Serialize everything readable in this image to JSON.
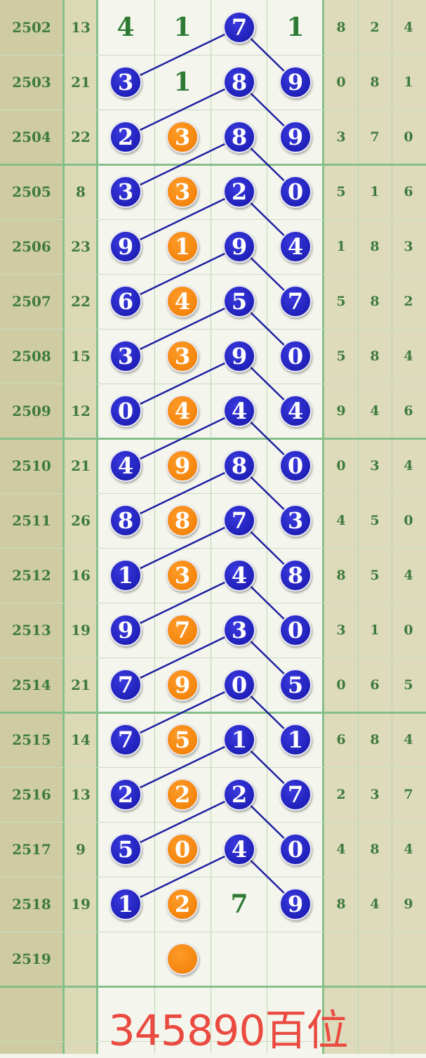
{
  "colors": {
    "blue_ball": "#1a1ab8",
    "orange_ball": "#f0820a",
    "line": "#1f1fa0",
    "text_green": "#3f7a3d",
    "caption": "#ea4a40"
  },
  "rows": [
    {
      "period": "2502",
      "sum": "13",
      "cells": [
        [
          "4",
          "plain"
        ],
        [
          "1",
          "plain"
        ],
        [
          "7",
          "blue"
        ],
        [
          "1",
          "plain"
        ]
      ],
      "tail": [
        "8",
        "2",
        "4"
      ]
    },
    {
      "period": "2503",
      "sum": "21",
      "cells": [
        [
          "3",
          "blue"
        ],
        [
          "1",
          "plain"
        ],
        [
          "8",
          "blue"
        ],
        [
          "9",
          "blue"
        ]
      ],
      "tail": [
        "0",
        "8",
        "1"
      ]
    },
    {
      "period": "2504",
      "sum": "22",
      "cells": [
        [
          "2",
          "blue"
        ],
        [
          "3",
          "orange"
        ],
        [
          "8",
          "blue"
        ],
        [
          "9",
          "blue"
        ]
      ],
      "tail": [
        "3",
        "7",
        "0"
      ]
    },
    {
      "period": "2505",
      "sum": "8",
      "cells": [
        [
          "3",
          "blue"
        ],
        [
          "3",
          "orange"
        ],
        [
          "2",
          "blue"
        ],
        [
          "0",
          "blue"
        ]
      ],
      "tail": [
        "5",
        "1",
        "6"
      ]
    },
    {
      "period": "2506",
      "sum": "23",
      "cells": [
        [
          "9",
          "blue"
        ],
        [
          "1",
          "orange"
        ],
        [
          "9",
          "blue"
        ],
        [
          "4",
          "blue"
        ]
      ],
      "tail": [
        "1",
        "8",
        "3"
      ]
    },
    {
      "period": "2507",
      "sum": "22",
      "cells": [
        [
          "6",
          "blue"
        ],
        [
          "4",
          "orange"
        ],
        [
          "5",
          "blue"
        ],
        [
          "7",
          "blue"
        ]
      ],
      "tail": [
        "5",
        "8",
        "2"
      ]
    },
    {
      "period": "2508",
      "sum": "15",
      "cells": [
        [
          "3",
          "blue"
        ],
        [
          "3",
          "orange"
        ],
        [
          "9",
          "blue"
        ],
        [
          "0",
          "blue"
        ]
      ],
      "tail": [
        "5",
        "8",
        "4"
      ]
    },
    {
      "period": "2509",
      "sum": "12",
      "cells": [
        [
          "0",
          "blue"
        ],
        [
          "4",
          "orange"
        ],
        [
          "4",
          "blue"
        ],
        [
          "4",
          "blue"
        ]
      ],
      "tail": [
        "9",
        "4",
        "6"
      ]
    },
    {
      "period": "2510",
      "sum": "21",
      "cells": [
        [
          "4",
          "blue"
        ],
        [
          "9",
          "orange"
        ],
        [
          "8",
          "blue"
        ],
        [
          "0",
          "blue"
        ]
      ],
      "tail": [
        "0",
        "3",
        "4"
      ]
    },
    {
      "period": "2511",
      "sum": "26",
      "cells": [
        [
          "8",
          "blue"
        ],
        [
          "8",
          "orange"
        ],
        [
          "7",
          "blue"
        ],
        [
          "3",
          "blue"
        ]
      ],
      "tail": [
        "4",
        "5",
        "0"
      ]
    },
    {
      "period": "2512",
      "sum": "16",
      "cells": [
        [
          "1",
          "blue"
        ],
        [
          "3",
          "orange"
        ],
        [
          "4",
          "blue"
        ],
        [
          "8",
          "blue"
        ]
      ],
      "tail": [
        "8",
        "5",
        "4"
      ]
    },
    {
      "period": "2513",
      "sum": "19",
      "cells": [
        [
          "9",
          "blue"
        ],
        [
          "7",
          "orange"
        ],
        [
          "3",
          "blue"
        ],
        [
          "0",
          "blue"
        ]
      ],
      "tail": [
        "3",
        "1",
        "0"
      ]
    },
    {
      "period": "2514",
      "sum": "21",
      "cells": [
        [
          "7",
          "blue"
        ],
        [
          "9",
          "orange"
        ],
        [
          "0",
          "blue"
        ],
        [
          "5",
          "blue"
        ]
      ],
      "tail": [
        "0",
        "6",
        "5"
      ]
    },
    {
      "period": "2515",
      "sum": "14",
      "cells": [
        [
          "7",
          "blue"
        ],
        [
          "5",
          "orange"
        ],
        [
          "1",
          "blue"
        ],
        [
          "1",
          "blue"
        ]
      ],
      "tail": [
        "6",
        "8",
        "4"
      ]
    },
    {
      "period": "2516",
      "sum": "13",
      "cells": [
        [
          "2",
          "blue"
        ],
        [
          "2",
          "orange"
        ],
        [
          "2",
          "blue"
        ],
        [
          "7",
          "blue"
        ]
      ],
      "tail": [
        "2",
        "3",
        "7"
      ]
    },
    {
      "period": "2517",
      "sum": "9",
      "cells": [
        [
          "5",
          "blue"
        ],
        [
          "0",
          "orange"
        ],
        [
          "4",
          "blue"
        ],
        [
          "0",
          "blue"
        ]
      ],
      "tail": [
        "4",
        "8",
        "4"
      ]
    },
    {
      "period": "2518",
      "sum": "19",
      "cells": [
        [
          "1",
          "blue"
        ],
        [
          "2",
          "orange"
        ],
        [
          "7",
          "plain"
        ],
        [
          "9",
          "blue"
        ]
      ],
      "tail": [
        "8",
        "4",
        "9"
      ]
    },
    {
      "period": "2519",
      "sum": "",
      "cells": [
        [
          "",
          ""
        ],
        [
          "",
          "orange"
        ],
        [
          "",
          ""
        ],
        [
          "",
          ""
        ]
      ],
      "tail": [
        "",
        "",
        ""
      ]
    }
  ],
  "caption": "345890百位"
}
